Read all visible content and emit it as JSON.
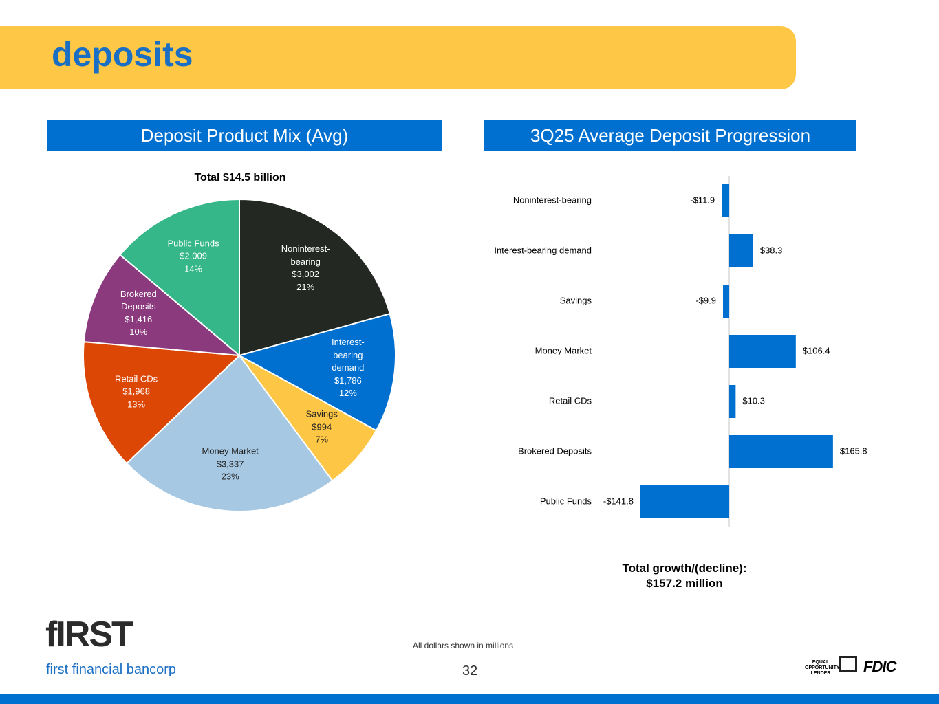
{
  "header": {
    "title": "deposits"
  },
  "chart_data": [
    {
      "type": "pie",
      "title": "Deposit Product Mix (Avg)",
      "subtitle": "Total $14.5 billion",
      "categories": [
        "Noninterest-bearing",
        "Interest-bearing demand",
        "Savings",
        "Money Market",
        "Retail CDs",
        "Brokered Deposits",
        "Public Funds"
      ],
      "values": [
        3002,
        1786,
        994,
        3337,
        1968,
        1416,
        2009
      ],
      "value_labels": [
        "$3,002",
        "$1,786",
        "$994",
        "$3,337",
        "$1,968",
        "$1,416",
        "$2,009"
      ],
      "shares": [
        21,
        12,
        7,
        23,
        13,
        10,
        14
      ],
      "share_labels": [
        "21%",
        "12%",
        "7%",
        "23%",
        "13%",
        "10%",
        "14%"
      ],
      "colors": [
        "#232823",
        "#0070d0",
        "#fdc745",
        "#a6c8e3",
        "#dc4706",
        "#8b3a7d",
        "#35b78a"
      ]
    },
    {
      "type": "hbar",
      "title": "3Q25 Average Deposit Progression",
      "categories": [
        "Noninterest-bearing",
        "Interest-bearing demand",
        "Savings",
        "Money Market",
        "Retail CDs",
        "Brokered Deposits",
        "Public Funds"
      ],
      "values": [
        -11.9,
        38.3,
        -9.9,
        106.4,
        10.3,
        165.8,
        -141.8
      ],
      "value_labels": [
        "-$11.9",
        "$38.3",
        "-$9.9",
        "$106.4",
        "$10.3",
        "$165.8",
        "-$141.8"
      ],
      "color": "#0070d0",
      "xlim": [
        -200,
        200
      ],
      "total_label": "Total growth/(decline):",
      "total_value": "$157.2 million"
    }
  ],
  "footer": {
    "note": "All dollars shown in millions",
    "page_number": 32,
    "logo": "fIRST",
    "company": "first financial bancorp",
    "badge": "EQUAL OPPORTUNITY LENDER",
    "fdic": "FDIC"
  }
}
